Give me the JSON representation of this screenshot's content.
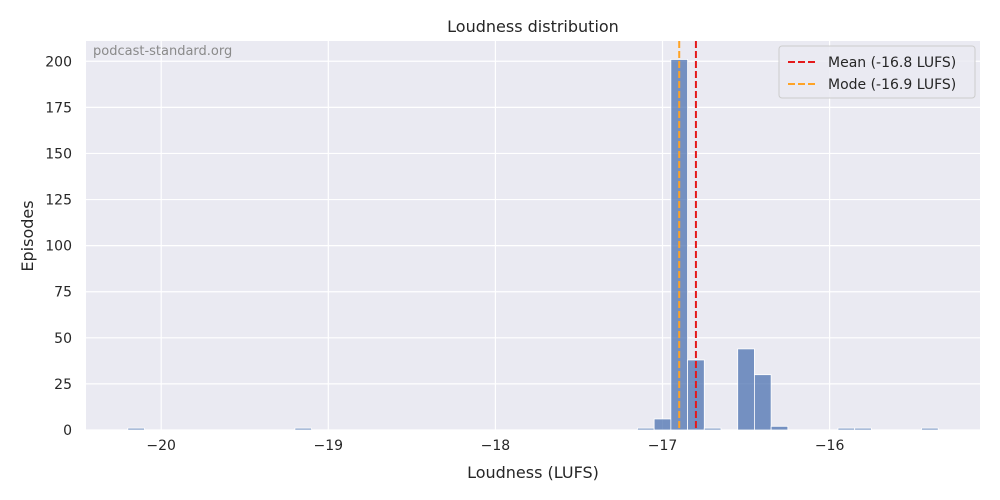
{
  "chart_data": {
    "type": "bar",
    "title": "Loudness distribution",
    "xlabel": "Loudness (LUFS)",
    "ylabel": "Episodes",
    "watermark": "podcast-standard.org",
    "xlim": [
      -20.45,
      -15.1
    ],
    "ylim": [
      0,
      211
    ],
    "xticks": [
      -20,
      -19,
      -18,
      -17,
      -16
    ],
    "xtick_labels": [
      "−20",
      "−19",
      "−18",
      "−17",
      "−16"
    ],
    "yticks": [
      0,
      25,
      50,
      75,
      100,
      125,
      150,
      175,
      200
    ],
    "ytick_labels": [
      "0",
      "25",
      "50",
      "75",
      "100",
      "125",
      "150",
      "175",
      "200"
    ],
    "grid": true,
    "legend_position": "top-right",
    "bar_color": "#4c72b0",
    "bins": [
      {
        "x0": -20.2,
        "x1": -20.1,
        "count": 1
      },
      {
        "x0": -19.2,
        "x1": -19.1,
        "count": 1
      },
      {
        "x0": -17.15,
        "x1": -17.05,
        "count": 1
      },
      {
        "x0": -17.05,
        "x1": -16.95,
        "count": 6
      },
      {
        "x0": -16.95,
        "x1": -16.85,
        "count": 201
      },
      {
        "x0": -16.85,
        "x1": -16.75,
        "count": 38
      },
      {
        "x0": -16.75,
        "x1": -16.65,
        "count": 1
      },
      {
        "x0": -16.55,
        "x1": -16.45,
        "count": 44
      },
      {
        "x0": -16.45,
        "x1": -16.35,
        "count": 30
      },
      {
        "x0": -16.35,
        "x1": -16.25,
        "count": 2
      },
      {
        "x0": -15.95,
        "x1": -15.85,
        "count": 1
      },
      {
        "x0": -15.85,
        "x1": -15.75,
        "count": 1
      },
      {
        "x0": -15.45,
        "x1": -15.35,
        "count": 1
      }
    ],
    "reference_lines": [
      {
        "name": "Mean (-16.8 LUFS)",
        "x": -16.8,
        "color": "#e41a1c"
      },
      {
        "name": "Mode (-16.9 LUFS)",
        "x": -16.9,
        "color": "#ffa326"
      }
    ]
  }
}
